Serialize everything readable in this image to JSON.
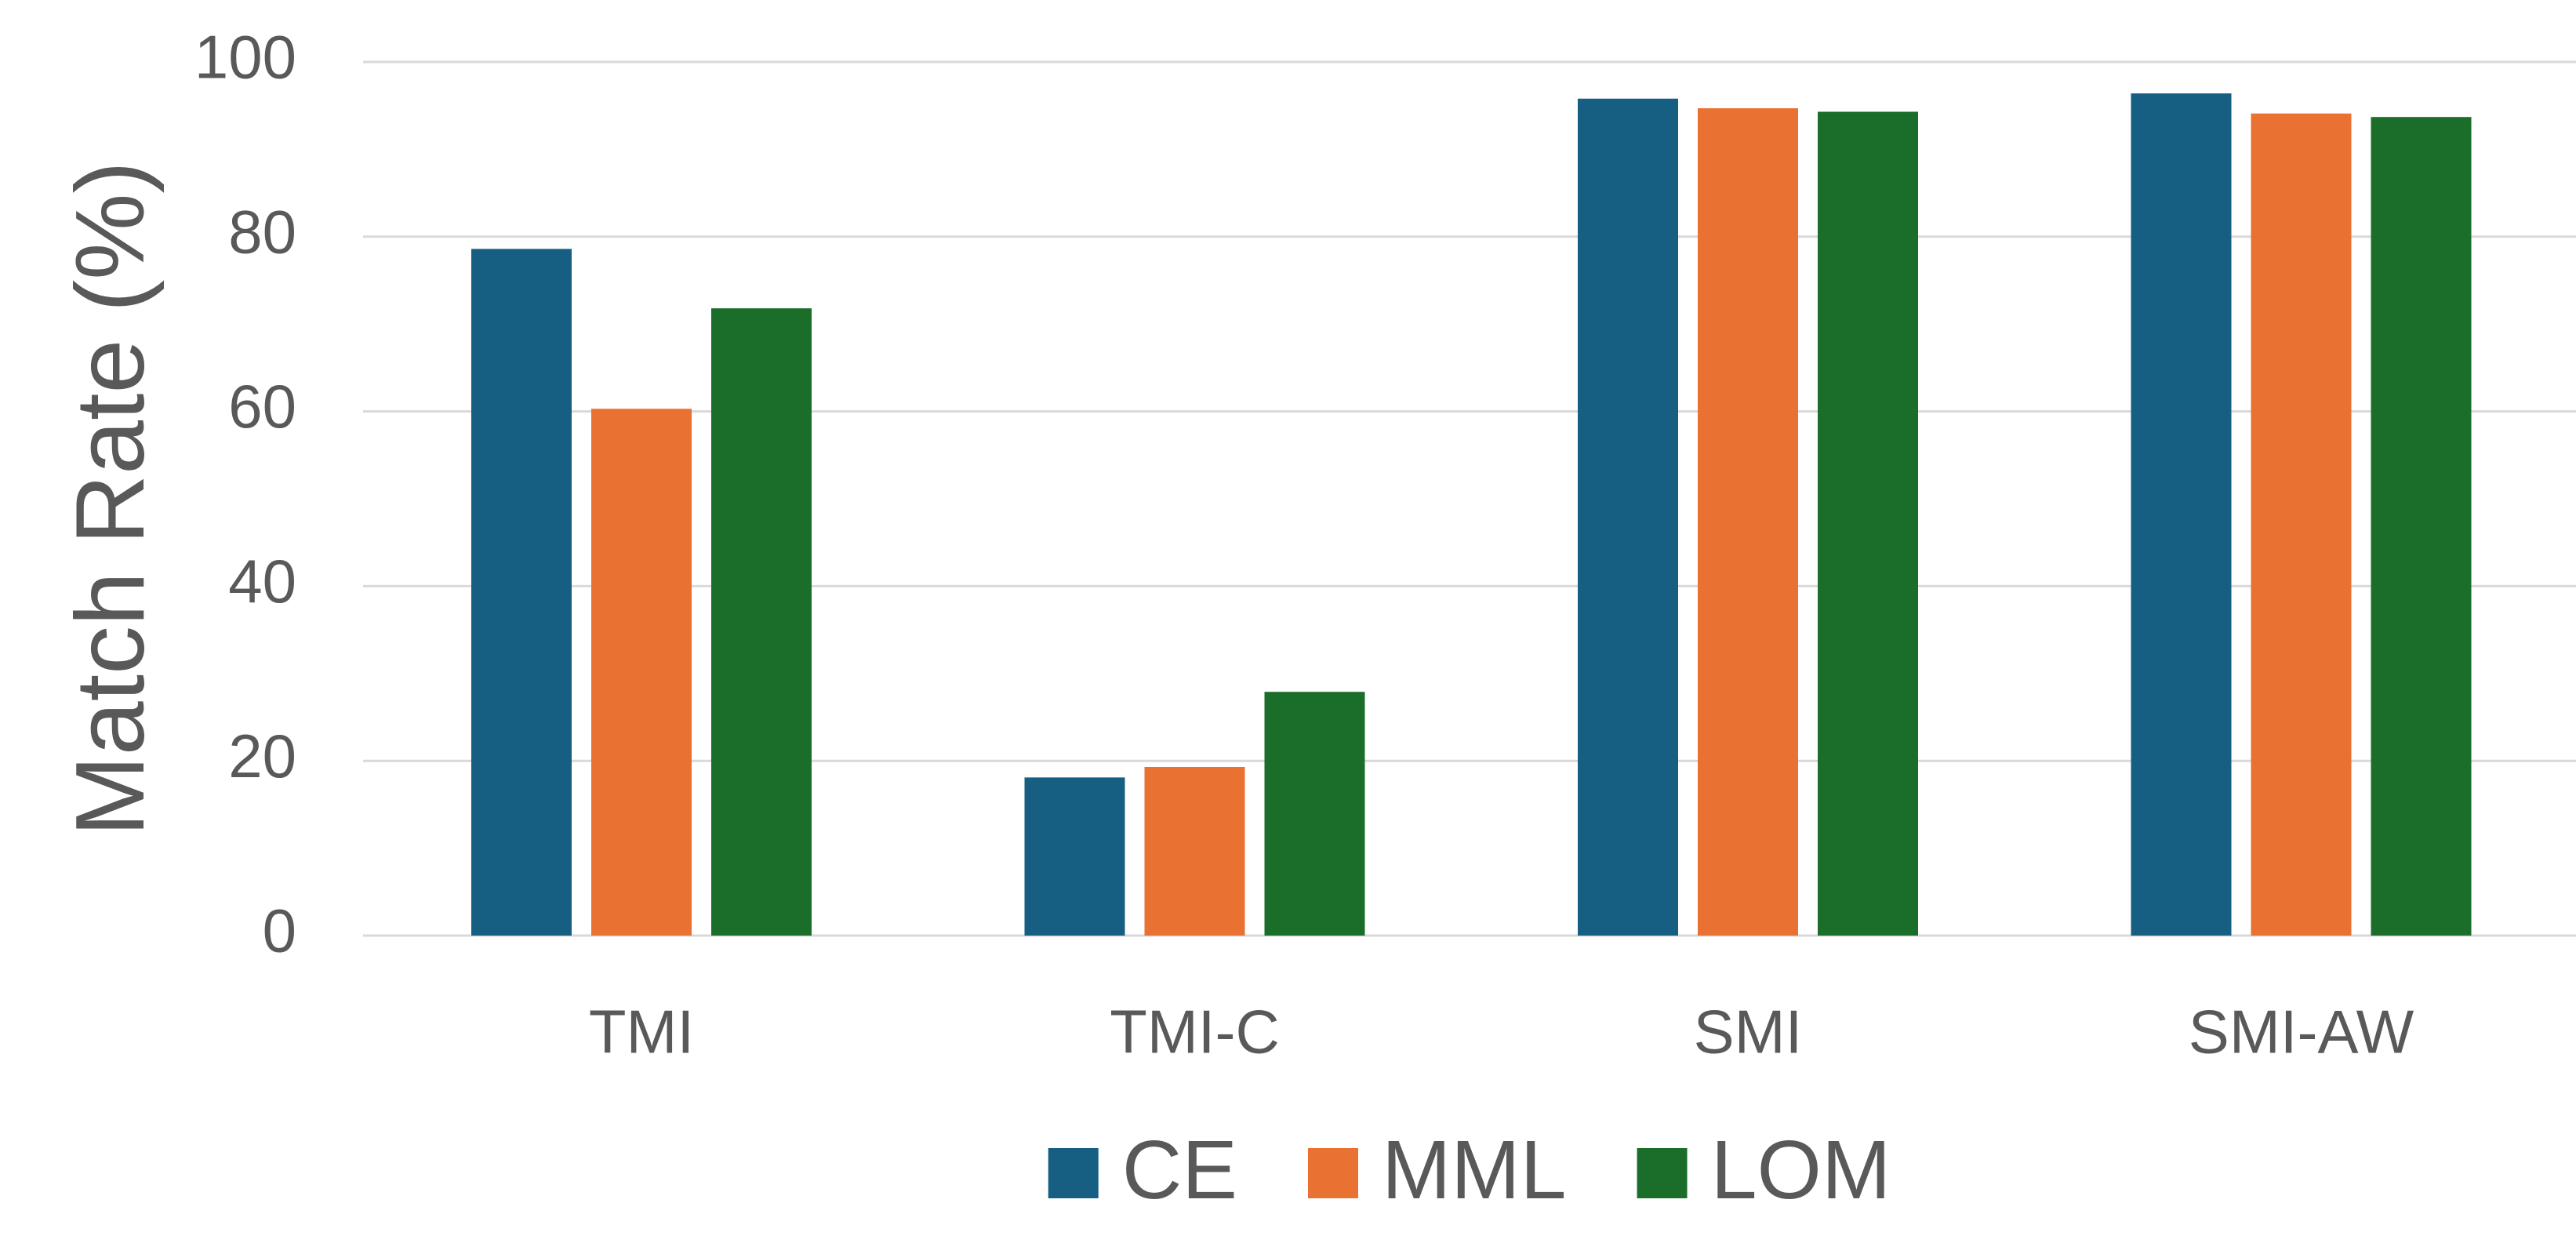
{
  "chart_data": {
    "type": "bar",
    "y_label": "Match Rate (%)",
    "categories": [
      "TMI",
      "TMI-C",
      "SMI",
      "SMI-AW"
    ],
    "series": [
      {
        "name": "CE",
        "color": "#175e83",
        "values": [
          78.6,
          18.1,
          95.8,
          96.4
        ]
      },
      {
        "name": "MML",
        "color": "#e97132",
        "values": [
          60.3,
          19.3,
          94.7,
          94.1
        ]
      },
      {
        "name": "LOM",
        "color": "#1b6e2a",
        "values": [
          71.8,
          27.9,
          94.3,
          93.7
        ]
      }
    ],
    "ylim": [
      0,
      100
    ],
    "yticks": [
      0,
      20,
      40,
      60,
      80,
      100
    ],
    "grid": true,
    "legend": "bottom"
  }
}
